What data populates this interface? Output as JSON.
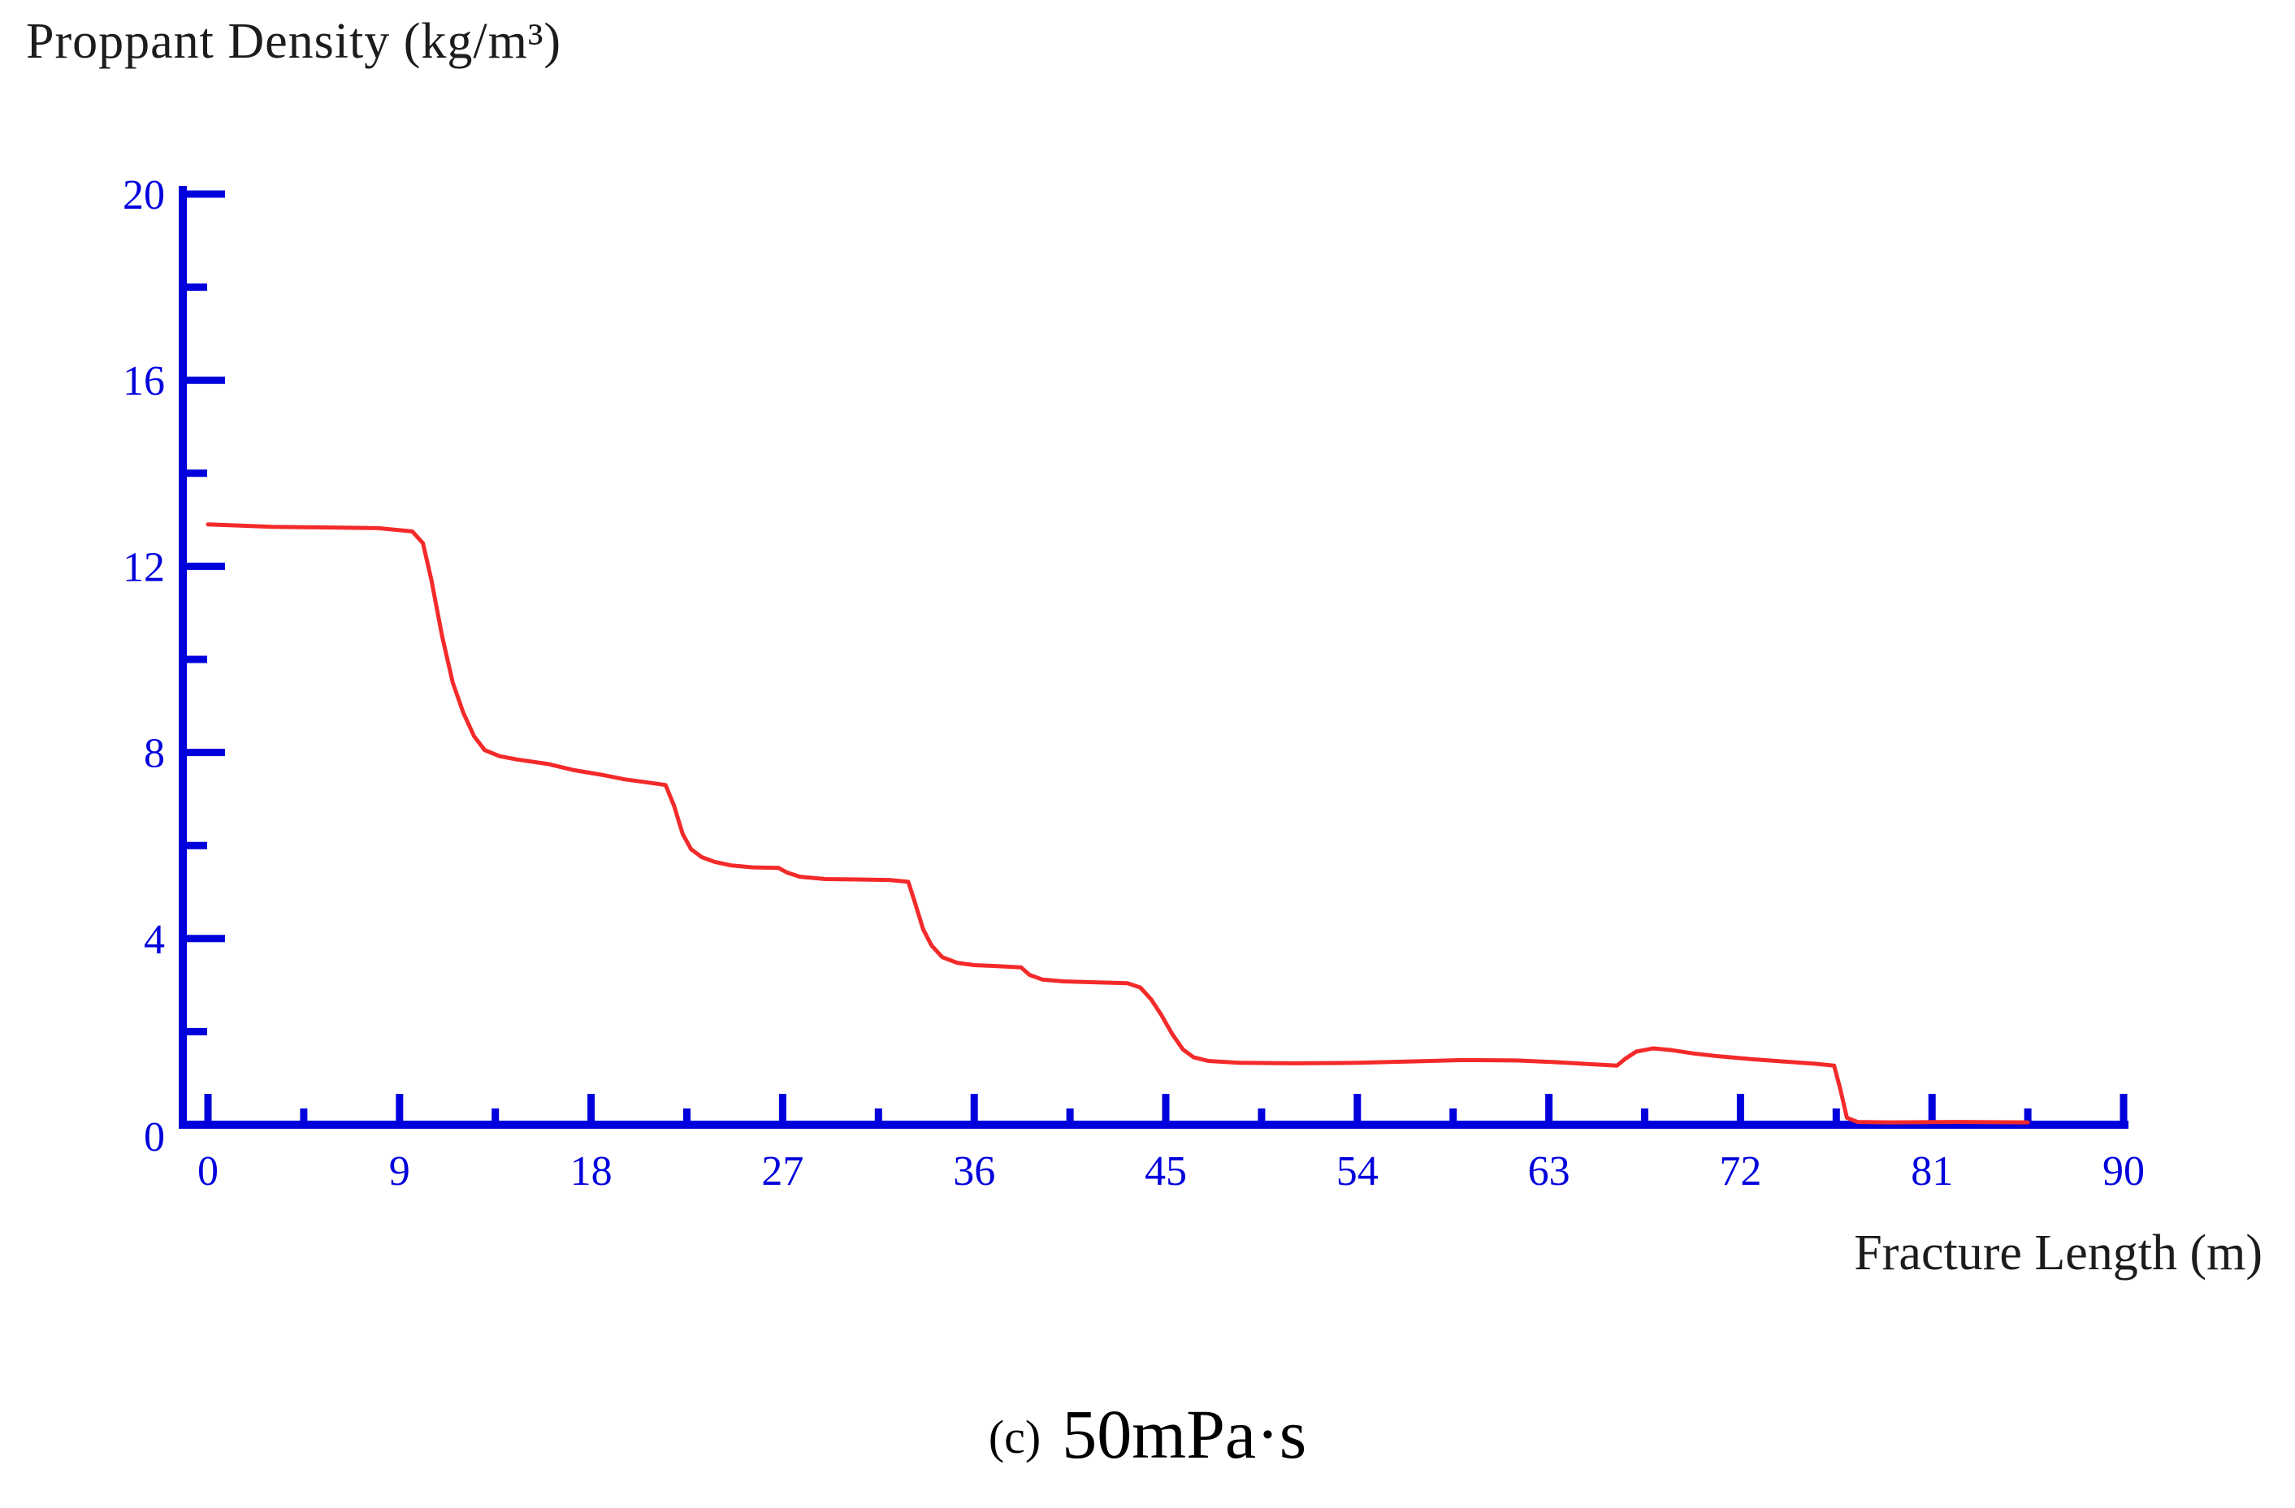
{
  "chart": {
    "title": "Proppant Density (kg/m³)",
    "xlabel": "Fracture Length (m)",
    "caption_prefix": "(c)",
    "caption_text": "50mPa·s"
  },
  "chart_data": {
    "type": "line",
    "title": "Proppant Density (kg/m³)",
    "xlabel": "Fracture Length (m)",
    "ylabel": "Proppant Density (kg/m³)",
    "xlim": [
      0,
      90
    ],
    "ylim": [
      0,
      20
    ],
    "x_major_ticks": [
      0,
      9,
      18,
      27,
      36,
      45,
      54,
      63,
      72,
      81,
      90
    ],
    "x_minor_ticks": [
      4.5,
      13.5,
      22.5,
      31.5,
      40.5,
      49.5,
      58.5,
      67.5,
      76.5,
      85.5
    ],
    "y_major_ticks": [
      0,
      4,
      8,
      12,
      16,
      20
    ],
    "y_minor_ticks": [
      2,
      6,
      10,
      14,
      18
    ],
    "grid": false,
    "legend": "none",
    "axis_color": "#0000dd",
    "line_color": "#f42a2a",
    "series": [
      {
        "name": "proppant-density-vs-fracture-length",
        "points": [
          [
            0,
            12.9
          ],
          [
            3,
            12.85
          ],
          [
            8,
            12.82
          ],
          [
            9.6,
            12.75
          ],
          [
            10.1,
            12.5
          ],
          [
            10.5,
            11.7
          ],
          [
            11,
            10.5
          ],
          [
            11.5,
            9.5
          ],
          [
            12,
            8.85
          ],
          [
            12.5,
            8.35
          ],
          [
            13,
            8.05
          ],
          [
            13.7,
            7.92
          ],
          [
            14.5,
            7.85
          ],
          [
            16,
            7.75
          ],
          [
            17.2,
            7.62
          ],
          [
            18.5,
            7.52
          ],
          [
            19.6,
            7.42
          ],
          [
            20.6,
            7.36
          ],
          [
            21.5,
            7.3
          ],
          [
            21.9,
            6.85
          ],
          [
            22.3,
            6.25
          ],
          [
            22.7,
            5.92
          ],
          [
            23.2,
            5.75
          ],
          [
            23.8,
            5.65
          ],
          [
            24.6,
            5.57
          ],
          [
            25.6,
            5.53
          ],
          [
            26.8,
            5.52
          ],
          [
            27.2,
            5.42
          ],
          [
            27.8,
            5.33
          ],
          [
            29,
            5.28
          ],
          [
            30.5,
            5.27
          ],
          [
            32,
            5.26
          ],
          [
            32.9,
            5.22
          ],
          [
            33.2,
            4.8
          ],
          [
            33.6,
            4.2
          ],
          [
            34,
            3.85
          ],
          [
            34.5,
            3.6
          ],
          [
            35.2,
            3.48
          ],
          [
            36,
            3.43
          ],
          [
            37,
            3.41
          ],
          [
            38.2,
            3.38
          ],
          [
            38.6,
            3.22
          ],
          [
            39.2,
            3.12
          ],
          [
            40.2,
            3.08
          ],
          [
            41.8,
            3.06
          ],
          [
            43.2,
            3.04
          ],
          [
            43.8,
            2.95
          ],
          [
            44.3,
            2.7
          ],
          [
            44.8,
            2.35
          ],
          [
            45.3,
            1.95
          ],
          [
            45.8,
            1.62
          ],
          [
            46.3,
            1.45
          ],
          [
            47,
            1.37
          ],
          [
            48.5,
            1.33
          ],
          [
            51,
            1.32
          ],
          [
            54,
            1.33
          ],
          [
            56.5,
            1.36
          ],
          [
            59,
            1.39
          ],
          [
            61.5,
            1.38
          ],
          [
            63.5,
            1.34
          ],
          [
            65,
            1.3
          ],
          [
            66.2,
            1.27
          ],
          [
            66.6,
            1.42
          ],
          [
            67.1,
            1.57
          ],
          [
            67.9,
            1.64
          ],
          [
            68.8,
            1.6
          ],
          [
            69.8,
            1.53
          ],
          [
            71,
            1.47
          ],
          [
            72.5,
            1.41
          ],
          [
            74,
            1.36
          ],
          [
            75.5,
            1.31
          ],
          [
            76.4,
            1.27
          ],
          [
            76.7,
            0.75
          ],
          [
            77,
            0.15
          ],
          [
            77.5,
            0.06
          ],
          [
            79,
            0.05
          ],
          [
            82,
            0.06
          ],
          [
            85.5,
            0.05
          ]
        ]
      }
    ]
  }
}
